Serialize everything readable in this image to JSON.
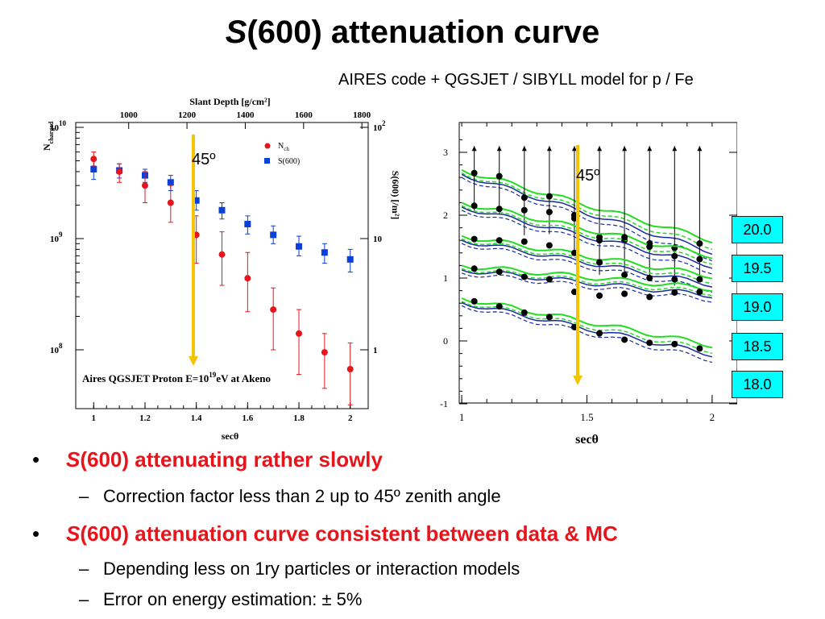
{
  "slide": {
    "title_prefix": "S",
    "title_rest": "(600) attenuation curve",
    "subtitle": "AIRES code + QGSJET / SIBYLL model for p / Fe",
    "bullets": [
      {
        "prefix": "S",
        "text": "(600) attenuating rather slowly",
        "subs": [
          "Correction factor less than 2 up to 45º zenith angle"
        ]
      },
      {
        "prefix": "S",
        "text": "(600) attenuation curve consistent between data & MC",
        "subs": [
          "Depending less on 1ry particles or interaction models",
          "Error on energy estimation: ± 5%"
        ]
      }
    ]
  },
  "chart_data": [
    {
      "type": "scatter",
      "title": "Aires QGSJET Proton E=10^19eV at Akeno",
      "xlabel": "secθ",
      "top_xlabel": "Slant Depth [g/cm²]",
      "ylabel_left": "N_charged",
      "ylabel_right": "S(600) [/m²]",
      "annotation": "45º",
      "xlim": [
        0.93,
        2.07
      ],
      "xticks": [
        "1",
        "1.2",
        "1.4",
        "1.6",
        "1.8",
        "2"
      ],
      "top_xticks": [
        "1000",
        "1200",
        "1400",
        "1600",
        "1800"
      ],
      "left_yticks": [
        "10^10",
        "10^9",
        "10^8"
      ],
      "right_yticks": [
        "10^2",
        "10",
        "1"
      ],
      "log_scale_y": true,
      "legend": "top-right",
      "series": [
        {
          "name": "N_ch",
          "color": "#e8141b",
          "marker": "circle",
          "x": [
            1.0,
            1.1,
            1.2,
            1.3,
            1.4,
            1.5,
            1.6,
            1.7,
            1.8,
            1.9,
            2.0
          ],
          "y": [
            5200000000.0,
            4000000000.0,
            3000000000.0,
            2100000000.0,
            1080000000.0,
            720000000.0,
            440000000.0,
            230000000.0,
            140000000.0,
            95000000.0,
            67000000.0
          ],
          "err_lo": [
            4500000000.0,
            3200000000.0,
            2100000000.0,
            1400000000.0,
            600000000.0,
            380000000.0,
            220000000.0,
            100000000.0,
            60000000.0,
            45000000.0,
            32000000.0
          ],
          "err_hi": [
            6000000000.0,
            4700000000.0,
            4000000000.0,
            3000000000.0,
            1600000000.0,
            1150000000.0,
            750000000.0,
            360000000.0,
            230000000.0,
            140000000.0,
            115000000.0
          ]
        },
        {
          "name": "S(600)",
          "color": "#0a3fd8",
          "marker": "square",
          "x": [
            1.0,
            1.1,
            1.2,
            1.3,
            1.4,
            1.5,
            1.6,
            1.7,
            1.8,
            1.9,
            2.0
          ],
          "y": [
            42,
            41,
            37,
            32,
            22,
            18,
            13.5,
            10.8,
            8.5,
            7.5,
            6.5
          ],
          "err_lo": [
            34,
            35,
            32,
            27,
            18,
            15,
            11.0,
            9.0,
            7.0,
            6.0,
            5.0
          ],
          "err_hi": [
            52,
            47,
            42,
            37,
            27,
            21,
            16.0,
            13.0,
            10.5,
            9.0,
            8.0
          ]
        }
      ]
    },
    {
      "type": "line",
      "xlabel": "secθ",
      "annotation": "45º",
      "xlim": [
        0.99,
        2.1
      ],
      "ylim": [
        -1,
        3.4
      ],
      "xticks": [
        "1",
        "1.5",
        "2"
      ],
      "yticks": [
        "-1",
        "0",
        "1",
        "2",
        "3"
      ],
      "energy_labels": [
        "20.0",
        "19.5",
        "19.0",
        "18.5",
        "18.0"
      ],
      "series": [
        {
          "name": "20.0",
          "x": [
            1.05,
            1.15,
            1.25,
            1.35,
            1.45,
            1.55,
            1.65,
            1.75,
            1.85,
            1.95
          ],
          "y": [
            2.67,
            2.62,
            2.28,
            2.3,
            2.0,
            1.65,
            1.6,
            1.55,
            1.48,
            1.55
          ]
        },
        {
          "name": "19.5",
          "x": [
            1.05,
            1.15,
            1.25,
            1.35,
            1.45,
            1.55,
            1.65,
            1.75,
            1.85,
            1.95
          ],
          "y": [
            2.15,
            2.1,
            2.08,
            2.05,
            1.95,
            1.6,
            1.65,
            1.5,
            1.35,
            1.3
          ]
        },
        {
          "name": "19.0",
          "x": [
            1.05,
            1.15,
            1.25,
            1.35,
            1.45,
            1.55,
            1.65,
            1.75,
            1.85,
            1.95
          ],
          "y": [
            1.62,
            1.6,
            1.58,
            1.52,
            1.4,
            1.25,
            1.05,
            1.0,
            0.98,
            0.98
          ]
        },
        {
          "name": "18.5",
          "x": [
            1.05,
            1.15,
            1.25,
            1.35,
            1.45,
            1.55,
            1.65,
            1.75,
            1.85,
            1.95
          ],
          "y": [
            1.15,
            1.1,
            1.02,
            0.98,
            0.78,
            0.72,
            0.75,
            0.7,
            0.77,
            0.78
          ]
        },
        {
          "name": "18.0",
          "x": [
            1.05,
            1.15,
            1.25,
            1.35,
            1.45,
            1.55,
            1.65,
            1.75,
            1.85,
            1.95
          ],
          "y": [
            0.63,
            0.55,
            0.45,
            0.38,
            0.22,
            0.12,
            0.02,
            -0.03,
            -0.05,
            -0.12
          ]
        }
      ]
    }
  ]
}
